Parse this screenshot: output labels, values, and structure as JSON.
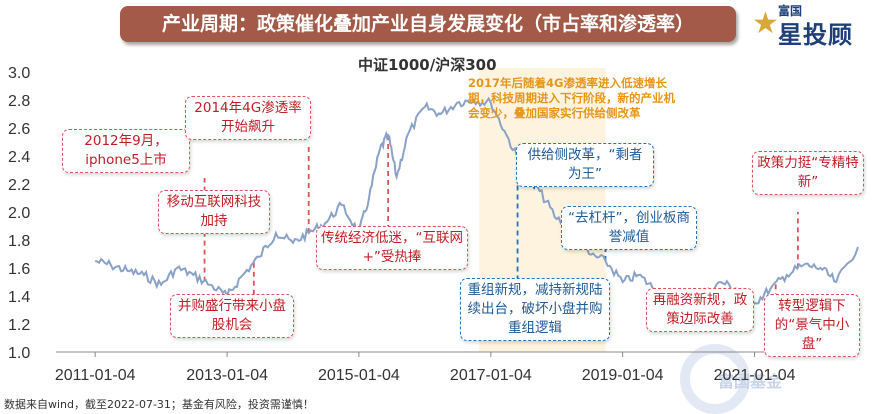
{
  "banner_title": "产业周期：政策催化叠加产业自身发展变化（市占率和渗透率）",
  "logo": {
    "top": "富国",
    "main": "星投顾"
  },
  "watermark": "富国基金",
  "footnote": "数据来自wind，截至2022-07-31；基金有风险，投资需谨慎！",
  "colors": {
    "line": "#8aa2c8",
    "red": "#c01e25",
    "blue": "#1f5a96",
    "orange": "#e69619",
    "shade": "#fdf3df",
    "banner": "#a35a49"
  },
  "chart_data": {
    "type": "line",
    "title": "中证1000/沪深300",
    "x_ticks": [
      "2011-01-04",
      "2013-01-04",
      "2015-01-04",
      "2017-01-04",
      "2019-01-04",
      "2021-01-04"
    ],
    "y_ticks": [
      "1.0",
      "1.2",
      "1.4",
      "1.6",
      "1.8",
      "2.0",
      "2.2",
      "2.4",
      "2.6",
      "2.8",
      "3.0"
    ],
    "ylim": [
      1.0,
      3.0
    ],
    "xlim": [
      "2010-06-01",
      "2022-07-31"
    ],
    "shaded_period": [
      "2016-11-01",
      "2018-10-01"
    ],
    "series": [
      {
        "x": [
          "2011-01-04",
          "2011-04-01",
          "2011-07-01",
          "2011-10-01",
          "2012-01-04",
          "2012-04-01",
          "2012-07-01",
          "2012-10-01",
          "2013-01-04",
          "2013-04-01",
          "2013-07-01",
          "2013-10-01",
          "2014-01-04",
          "2014-04-01",
          "2014-07-01",
          "2014-10-01",
          "2015-01-04",
          "2015-03-01",
          "2015-05-01",
          "2015-06-15",
          "2015-08-01",
          "2015-10-01",
          "2016-01-04",
          "2016-04-01",
          "2016-07-01",
          "2016-10-01",
          "2017-01-04",
          "2017-04-01",
          "2017-07-01",
          "2017-10-01",
          "2018-01-04",
          "2018-04-01",
          "2018-07-01",
          "2018-10-01",
          "2019-01-04",
          "2019-04-01",
          "2019-07-01",
          "2019-10-01",
          "2020-01-04",
          "2020-04-01",
          "2020-07-01",
          "2020-10-01",
          "2021-01-04",
          "2021-04-01",
          "2021-07-01",
          "2021-10-01",
          "2022-01-04",
          "2022-04-01",
          "2022-07-31"
        ],
        "y": [
          1.65,
          1.62,
          1.58,
          1.55,
          1.48,
          1.6,
          1.55,
          1.48,
          1.4,
          1.55,
          1.68,
          1.85,
          1.78,
          1.85,
          1.92,
          2.05,
          1.85,
          2.1,
          2.45,
          2.55,
          2.25,
          2.55,
          2.75,
          2.7,
          2.78,
          2.8,
          2.78,
          2.55,
          2.3,
          2.15,
          1.95,
          1.9,
          1.7,
          1.65,
          1.5,
          1.55,
          1.45,
          1.4,
          1.38,
          1.4,
          1.5,
          1.45,
          1.35,
          1.45,
          1.55,
          1.62,
          1.6,
          1.5,
          1.75
        ]
      }
    ],
    "annotations": [
      {
        "text": "2012年9月，iphone5上市",
        "date": "2012-09-01"
      },
      {
        "text": "2014年4G渗透率开始飙升",
        "date": "2014-04-01"
      },
      {
        "text": "移动互联网科技加持",
        "date": "2013-10-01"
      },
      {
        "text": "并购盛行带来小盘股机会",
        "date": "2013-06-01"
      },
      {
        "text": "传统经济低迷，“互联网+”受热捧",
        "date": "2015-06-15"
      },
      {
        "text": "2017年后随着4G渗透率进入低速增长期，科技周期进入下行阶段，新的产业机会变少，叠加国家实行供给侧改革",
        "date": "2017-01-04"
      },
      {
        "text": "供给侧改革，“剩者为王”",
        "date": "2017-09-01"
      },
      {
        "text": "“去杠杆”，创业板商誉减值",
        "date": "2018-10-01"
      },
      {
        "text": "重组新规，减持新规陆续出台，破坏小盘并购重组逻辑",
        "date": "2017-06-01"
      },
      {
        "text": "再融资新规，政策边际改善",
        "date": "2020-02-15"
      },
      {
        "text": "政策力挺“专精特新”",
        "date": "2021-09-01"
      },
      {
        "text": "转型逻辑下的“景气中小盘”",
        "date": "2021-05-01"
      }
    ]
  },
  "boxes": {
    "iphone": "2012年9月，iphone5上市",
    "g4": "2014年4G渗透率开始飙升",
    "mobile": "移动互联网科技加持",
    "merge": "并购盛行带来小盘股机会",
    "internet": "传统经济低迷，“互联网+”受热捧",
    "supply": "供给侧改革，“剩者为王”",
    "delever": "“去杠杆”，创业板商誉减值",
    "restructure": "重组新规，减持新规陆续出台，破坏小盘并购重组逻辑",
    "refinance": "再融资新规，政策边际改善",
    "special": "政策力挺“专精特新”",
    "transform": "转型逻辑下的“景气中小盘”"
  },
  "orange_note": "2017年后随着4G渗透率进入低速增长期，科技周期进入下行阶段，新的产业机会变少，叠加国家实行供给侧改革"
}
